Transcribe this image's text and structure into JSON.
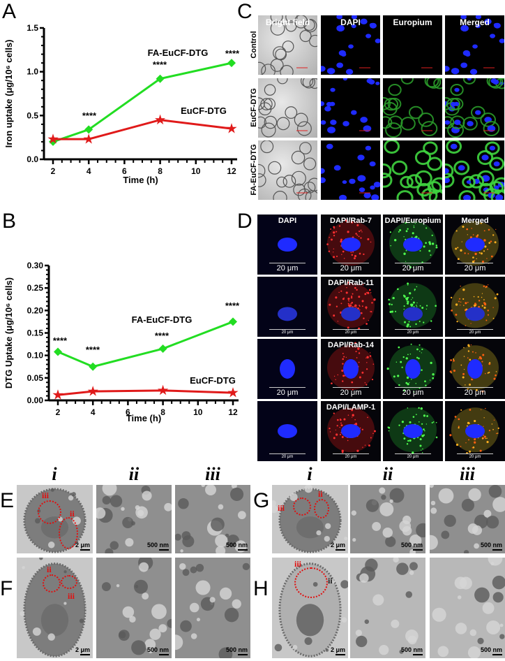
{
  "panel_letters": {
    "A": "A",
    "B": "B",
    "C": "C",
    "D": "D",
    "E": "E",
    "F": "F",
    "G": "G",
    "H": "H"
  },
  "chart_data": [
    {
      "panel": "A",
      "type": "line",
      "xlabel": "Time (h)",
      "ylabel": "Iron uptake (μg/10⁶ cells)",
      "x": [
        2,
        4,
        8,
        12
      ],
      "xticks": [
        "2",
        "4",
        "6",
        "8",
        "10",
        "12"
      ],
      "yticks": [
        "0.0",
        "0.5",
        "1.0",
        "1.5"
      ],
      "xlim": [
        2,
        12
      ],
      "ylim": [
        0,
        1.5
      ],
      "grid": false,
      "series": [
        {
          "name": "FA-EuCF-DTG",
          "color": "#22dd22",
          "marker": "diamond",
          "values": [
            0.2,
            0.34,
            0.92,
            1.1
          ]
        },
        {
          "name": "EuCF-DTG",
          "color": "#e01a1a",
          "marker": "star",
          "values": [
            0.23,
            0.23,
            0.45,
            0.35
          ]
        }
      ],
      "annotations": [
        {
          "x": 4,
          "text": "****"
        },
        {
          "x": 8,
          "text": "****"
        },
        {
          "x": 12,
          "text": "****"
        }
      ]
    },
    {
      "panel": "B",
      "type": "line",
      "xlabel": "Time (h)",
      "ylabel": "DTG Uptake (μg/10⁶ cells)",
      "x": [
        2,
        4,
        8,
        12
      ],
      "xticks": [
        "2",
        "4",
        "6",
        "8",
        "10",
        "12"
      ],
      "yticks": [
        "0.00",
        "0.05",
        "0.10",
        "0.15",
        "0.20",
        "0.25",
        "0.30"
      ],
      "xlim": [
        2,
        12
      ],
      "ylim": [
        0,
        0.3
      ],
      "grid": false,
      "series": [
        {
          "name": "FA-EuCF-DTG",
          "color": "#22dd22",
          "marker": "diamond",
          "values": [
            0.108,
            0.075,
            0.115,
            0.175
          ]
        },
        {
          "name": "EuCF-DTG",
          "color": "#e01a1a",
          "marker": "star",
          "values": [
            0.012,
            0.02,
            0.022,
            0.017
          ]
        }
      ],
      "annotations": [
        {
          "x": 2,
          "text": "****"
        },
        {
          "x": 4,
          "text": "****"
        },
        {
          "x": 8,
          "text": "****"
        },
        {
          "x": 12,
          "text": "****"
        }
      ]
    }
  ],
  "panel_c": {
    "columns": [
      "Bright field",
      "DAPI",
      "Europium",
      "Merged"
    ],
    "rows": [
      "Control",
      "EuCF-DTG",
      "FA-EuCF-DTG"
    ]
  },
  "panel_d": {
    "labels": [
      [
        "DAPI",
        "DAPI/Rab-7",
        "DAPI/Europium",
        "Merged"
      ],
      [
        "",
        "DAPI/Rab-11",
        "",
        ""
      ],
      [
        "",
        "DAPI/Rab-14",
        "",
        ""
      ],
      [
        "",
        "DAPI/LAMP-1",
        "",
        ""
      ]
    ],
    "scale_bar": "20 μm"
  },
  "tem": {
    "column_headers": [
      "i",
      "ii",
      "iii"
    ],
    "scale_i": "2 μm",
    "scale_zoom": "500 nm",
    "roi_labels": {
      "ii": "ii",
      "iii": "iii"
    }
  }
}
